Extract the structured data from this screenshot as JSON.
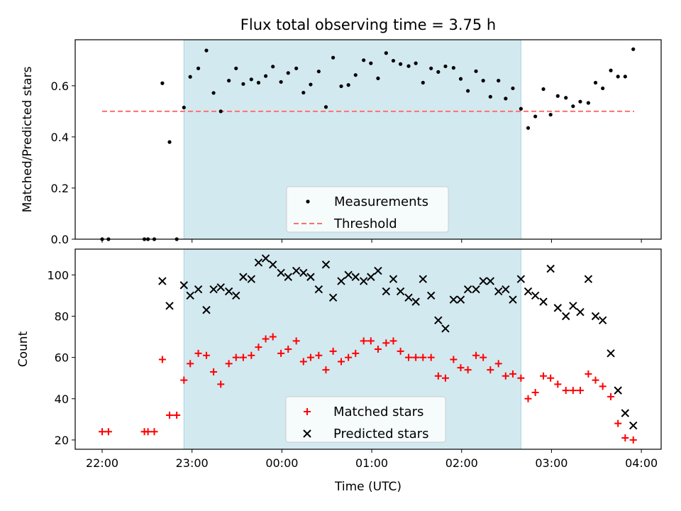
{
  "chart_data": {
    "type": "scatter",
    "title": "Flux total observing time = 3.75 h",
    "xlabel": "Time (UTC)",
    "x_tick_labels": [
      "22:00",
      "23:00",
      "00:00",
      "01:00",
      "02:00",
      "03:00",
      "04:00"
    ],
    "x_ticks_hours": [
      22,
      23,
      24,
      25,
      26,
      27,
      28
    ],
    "xlim_hours": [
      21.7,
      28.22
    ],
    "observing_window_hours": [
      22.91,
      26.66
    ],
    "window_color": "#d3e9f0",
    "panels": [
      {
        "ylabel": "Matched/Predicted stars",
        "ylim": [
          0,
          0.78
        ],
        "y_ticks": [
          0.0,
          0.2,
          0.4,
          0.6
        ],
        "y_tick_labels": [
          "0.0",
          "0.2",
          "0.4",
          "0.6"
        ],
        "legend": {
          "location": "lower center",
          "entries": [
            "Measurements",
            "Threshold"
          ]
        },
        "threshold": {
          "name": "Threshold",
          "value": 0.5,
          "x_range": [
            22.0,
            27.92
          ],
          "color": "#ff7070",
          "style": "dashed"
        },
        "series": [
          {
            "name": "Measurements",
            "marker": "dot",
            "color": "#000000",
            "points": [
              [
                22.0,
                0.0
              ],
              [
                22.07,
                0.0
              ],
              [
                22.47,
                0.0
              ],
              [
                22.51,
                0.0
              ],
              [
                22.58,
                0.0
              ],
              [
                22.67,
                0.61
              ],
              [
                22.75,
                0.38
              ],
              [
                22.83,
                0.0
              ],
              [
                22.91,
                0.515
              ],
              [
                22.98,
                0.635
              ],
              [
                23.07,
                0.668
              ],
              [
                23.16,
                0.738
              ],
              [
                23.24,
                0.572
              ],
              [
                23.32,
                0.5
              ],
              [
                23.41,
                0.62
              ],
              [
                23.49,
                0.668
              ],
              [
                23.57,
                0.607
              ],
              [
                23.66,
                0.625
              ],
              [
                23.74,
                0.612
              ],
              [
                23.82,
                0.638
              ],
              [
                23.9,
                0.675
              ],
              [
                23.99,
                0.615
              ],
              [
                24.07,
                0.65
              ],
              [
                24.16,
                0.668
              ],
              [
                24.24,
                0.573
              ],
              [
                24.32,
                0.605
              ],
              [
                24.41,
                0.656
              ],
              [
                24.49,
                0.517
              ],
              [
                24.57,
                0.71
              ],
              [
                24.66,
                0.598
              ],
              [
                24.74,
                0.603
              ],
              [
                24.82,
                0.642
              ],
              [
                24.91,
                0.7
              ],
              [
                24.99,
                0.688
              ],
              [
                25.07,
                0.629
              ],
              [
                25.16,
                0.728
              ],
              [
                25.24,
                0.698
              ],
              [
                25.32,
                0.685
              ],
              [
                25.41,
                0.677
              ],
              [
                25.49,
                0.688
              ],
              [
                25.57,
                0.612
              ],
              [
                25.66,
                0.668
              ],
              [
                25.74,
                0.654
              ],
              [
                25.82,
                0.676
              ],
              [
                25.91,
                0.67
              ],
              [
                25.99,
                0.627
              ],
              [
                26.07,
                0.58
              ],
              [
                26.16,
                0.657
              ],
              [
                26.24,
                0.62
              ],
              [
                26.32,
                0.557
              ],
              [
                26.41,
                0.62
              ],
              [
                26.49,
                0.55
              ],
              [
                26.57,
                0.59
              ],
              [
                26.66,
                0.51
              ],
              [
                26.74,
                0.435
              ],
              [
                26.82,
                0.48
              ],
              [
                26.91,
                0.587
              ],
              [
                26.99,
                0.487
              ],
              [
                27.07,
                0.56
              ],
              [
                27.16,
                0.553
              ],
              [
                27.24,
                0.52
              ],
              [
                27.32,
                0.538
              ],
              [
                27.41,
                0.533
              ],
              [
                27.49,
                0.612
              ],
              [
                27.57,
                0.59
              ],
              [
                27.66,
                0.66
              ],
              [
                27.74,
                0.636
              ],
              [
                27.82,
                0.636
              ],
              [
                27.91,
                0.743
              ]
            ]
          }
        ]
      },
      {
        "ylabel": "Count",
        "ylim": [
          15.5,
          112.5
        ],
        "y_ticks": [
          20,
          40,
          60,
          80,
          100
        ],
        "y_tick_labels": [
          "20",
          "40",
          "60",
          "80",
          "100"
        ],
        "legend": {
          "location": "lower center",
          "entries": [
            "Matched stars",
            "Predicted stars"
          ]
        },
        "series": [
          {
            "name": "Matched stars",
            "marker": "plus",
            "color": "#ff0000",
            "points": [
              [
                22.0,
                24
              ],
              [
                22.07,
                24
              ],
              [
                22.47,
                24
              ],
              [
                22.51,
                24
              ],
              [
                22.58,
                24
              ],
              [
                22.67,
                59
              ],
              [
                22.75,
                32
              ],
              [
                22.83,
                32
              ],
              [
                22.91,
                49
              ],
              [
                22.98,
                57
              ],
              [
                23.07,
                62
              ],
              [
                23.16,
                61
              ],
              [
                23.24,
                53
              ],
              [
                23.32,
                47
              ],
              [
                23.41,
                57
              ],
              [
                23.49,
                60
              ],
              [
                23.57,
                60
              ],
              [
                23.66,
                61
              ],
              [
                23.74,
                65
              ],
              [
                23.82,
                69
              ],
              [
                23.9,
                70
              ],
              [
                23.99,
                62
              ],
              [
                24.07,
                64
              ],
              [
                24.16,
                68
              ],
              [
                24.24,
                58
              ],
              [
                24.32,
                60
              ],
              [
                24.41,
                61
              ],
              [
                24.49,
                54
              ],
              [
                24.57,
                63
              ],
              [
                24.66,
                58
              ],
              [
                24.74,
                60
              ],
              [
                24.82,
                62
              ],
              [
                24.91,
                68
              ],
              [
                24.99,
                68
              ],
              [
                25.07,
                64
              ],
              [
                25.16,
                67
              ],
              [
                25.24,
                68
              ],
              [
                25.32,
                63
              ],
              [
                25.41,
                60
              ],
              [
                25.49,
                60
              ],
              [
                25.57,
                60
              ],
              [
                25.66,
                60
              ],
              [
                25.74,
                51
              ],
              [
                25.82,
                50
              ],
              [
                25.91,
                59
              ],
              [
                25.99,
                55
              ],
              [
                26.07,
                54
              ],
              [
                26.16,
                61
              ],
              [
                26.24,
                60
              ],
              [
                26.32,
                54
              ],
              [
                26.41,
                57
              ],
              [
                26.49,
                51
              ],
              [
                26.57,
                52
              ],
              [
                26.66,
                50
              ],
              [
                26.74,
                40
              ],
              [
                26.82,
                43
              ],
              [
                26.91,
                51
              ],
              [
                26.99,
                50
              ],
              [
                27.07,
                47
              ],
              [
                27.16,
                44
              ],
              [
                27.24,
                44
              ],
              [
                27.32,
                44
              ],
              [
                27.41,
                52
              ],
              [
                27.49,
                49
              ],
              [
                27.57,
                46
              ],
              [
                27.66,
                41
              ],
              [
                27.74,
                28
              ],
              [
                27.82,
                21
              ],
              [
                27.91,
                20
              ]
            ]
          },
          {
            "name": "Predicted stars",
            "marker": "x",
            "color": "#000000",
            "points": [
              [
                22.67,
                97
              ],
              [
                22.75,
                85
              ],
              [
                22.91,
                95
              ],
              [
                22.98,
                90
              ],
              [
                23.07,
                93
              ],
              [
                23.16,
                83
              ],
              [
                23.24,
                93
              ],
              [
                23.32,
                94
              ],
              [
                23.41,
                92
              ],
              [
                23.49,
                90
              ],
              [
                23.57,
                99
              ],
              [
                23.66,
                98
              ],
              [
                23.74,
                106
              ],
              [
                23.82,
                108
              ],
              [
                23.9,
                105
              ],
              [
                23.99,
                101
              ],
              [
                24.07,
                99
              ],
              [
                24.16,
                102
              ],
              [
                24.24,
                101
              ],
              [
                24.32,
                99
              ],
              [
                24.41,
                93
              ],
              [
                24.49,
                105
              ],
              [
                24.57,
                89
              ],
              [
                24.66,
                97
              ],
              [
                24.74,
                100
              ],
              [
                24.82,
                99
              ],
              [
                24.91,
                97
              ],
              [
                24.99,
                99
              ],
              [
                25.07,
                102
              ],
              [
                25.16,
                92
              ],
              [
                25.24,
                98
              ],
              [
                25.32,
                92
              ],
              [
                25.41,
                89
              ],
              [
                25.49,
                87
              ],
              [
                25.57,
                98
              ],
              [
                25.66,
                90
              ],
              [
                25.74,
                78
              ],
              [
                25.82,
                74
              ],
              [
                25.91,
                88
              ],
              [
                25.99,
                88
              ],
              [
                26.07,
                93
              ],
              [
                26.16,
                93
              ],
              [
                26.24,
                97
              ],
              [
                26.32,
                97
              ],
              [
                26.41,
                92
              ],
              [
                26.49,
                93
              ],
              [
                26.57,
                88
              ],
              [
                26.66,
                98
              ],
              [
                26.74,
                92
              ],
              [
                26.82,
                90
              ],
              [
                26.91,
                87
              ],
              [
                26.99,
                103
              ],
              [
                27.07,
                84
              ],
              [
                27.16,
                80
              ],
              [
                27.24,
                85
              ],
              [
                27.32,
                82
              ],
              [
                27.41,
                98
              ],
              [
                27.49,
                80
              ],
              [
                27.57,
                78
              ],
              [
                27.66,
                62
              ],
              [
                27.74,
                44
              ],
              [
                27.82,
                33
              ],
              [
                27.91,
                27
              ]
            ]
          }
        ]
      }
    ]
  }
}
